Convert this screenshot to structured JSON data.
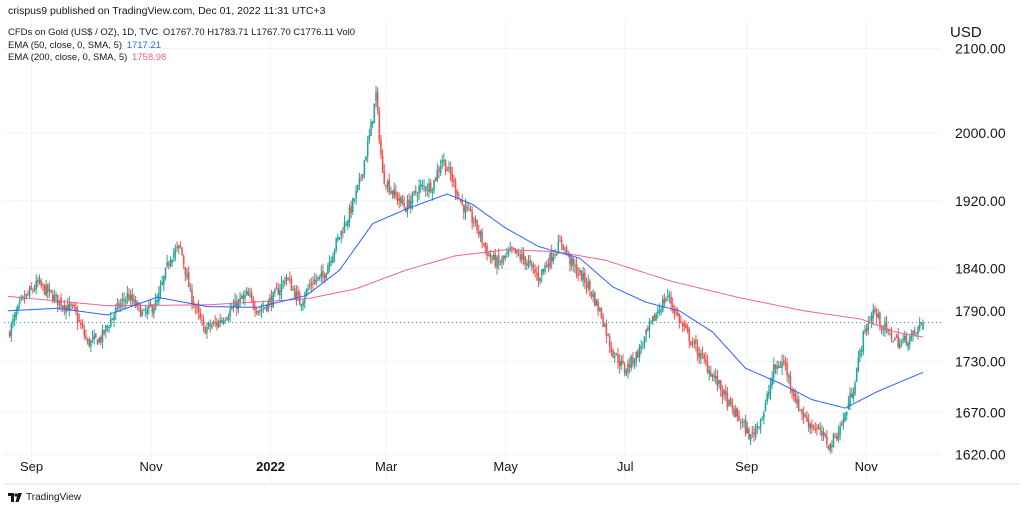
{
  "publisher_line": "crispus9 published on TradingView.com, Dec 01, 2022 11:31 UTC+3",
  "legend": {
    "symbol": "CFDs on Gold (US$ / OZ), 1D, TVC",
    "ohlc": "O1767.70 H1783.71 L1767.70 C1776.11 Vol0",
    "ema50_label": "EMA (50, close, 0, SMA, 5)",
    "ema50_value": "1717.21",
    "ema200_label": "EMA (200, close, 0, SMA, 5)",
    "ema200_value": "1758.98"
  },
  "currency": "USD",
  "brand": "TradingView",
  "colors": {
    "up": "#26a69a",
    "down": "#ef5350",
    "ema50": "#2962ff",
    "ema200": "#f06292",
    "last_price_line": "#26a69a"
  },
  "chart_data": {
    "type": "candlestick",
    "y_ticks": [
      "1620.00",
      "1670.00",
      "1730.00",
      "1790.00",
      "1840.00",
      "1920.00",
      "2000.00",
      "2100.00"
    ],
    "x_ticks": [
      "Sep",
      "Nov",
      "2022",
      "Mar",
      "May",
      "Jul",
      "Sep",
      "Nov"
    ],
    "ylim": [
      1590,
      2110
    ],
    "last_price": 1776.11,
    "close_path": [
      [
        0,
        1762
      ],
      [
        8,
        1800
      ],
      [
        18,
        1822
      ],
      [
        30,
        1802
      ],
      [
        40,
        1790
      ],
      [
        48,
        1752
      ],
      [
        56,
        1757
      ],
      [
        65,
        1790
      ],
      [
        72,
        1808
      ],
      [
        82,
        1785
      ],
      [
        90,
        1800
      ],
      [
        98,
        1855
      ],
      [
        104,
        1865
      ],
      [
        110,
        1810
      ],
      [
        118,
        1768
      ],
      [
        126,
        1775
      ],
      [
        135,
        1792
      ],
      [
        144,
        1808
      ],
      [
        152,
        1790
      ],
      [
        160,
        1805
      ],
      [
        168,
        1830
      ],
      [
        176,
        1800
      ],
      [
        184,
        1825
      ],
      [
        190,
        1830
      ],
      [
        198,
        1870
      ],
      [
        206,
        1905
      ],
      [
        212,
        1940
      ],
      [
        218,
        1995
      ],
      [
        222,
        2045
      ],
      [
        226,
        1950
      ],
      [
        232,
        1930
      ],
      [
        240,
        1912
      ],
      [
        248,
        1935
      ],
      [
        256,
        1938
      ],
      [
        262,
        1970
      ],
      [
        268,
        1945
      ],
      [
        274,
        1915
      ],
      [
        282,
        1892
      ],
      [
        290,
        1855
      ],
      [
        296,
        1845
      ],
      [
        304,
        1860
      ],
      [
        312,
        1850
      ],
      [
        320,
        1830
      ],
      [
        328,
        1855
      ],
      [
        334,
        1872
      ],
      [
        340,
        1845
      ],
      [
        350,
        1820
      ],
      [
        358,
        1785
      ],
      [
        364,
        1745
      ],
      [
        372,
        1720
      ],
      [
        380,
        1740
      ],
      [
        386,
        1765
      ],
      [
        392,
        1790
      ],
      [
        398,
        1808
      ],
      [
        406,
        1775
      ],
      [
        414,
        1748
      ],
      [
        420,
        1730
      ],
      [
        428,
        1705
      ],
      [
        436,
        1675
      ],
      [
        442,
        1660
      ],
      [
        448,
        1640
      ],
      [
        456,
        1670
      ],
      [
        462,
        1720
      ],
      [
        468,
        1730
      ],
      [
        476,
        1680
      ],
      [
        482,
        1660
      ],
      [
        488,
        1650
      ],
      [
        496,
        1630
      ],
      [
        504,
        1660
      ],
      [
        510,
        1700
      ],
      [
        516,
        1760
      ],
      [
        522,
        1790
      ],
      [
        530,
        1765
      ],
      [
        538,
        1752
      ],
      [
        546,
        1760
      ],
      [
        552,
        1776.11
      ]
    ],
    "ema50_path": [
      [
        0,
        1790
      ],
      [
        30,
        1793
      ],
      [
        60,
        1785
      ],
      [
        90,
        1806
      ],
      [
        120,
        1795
      ],
      [
        150,
        1794
      ],
      [
        180,
        1808
      ],
      [
        200,
        1838
      ],
      [
        220,
        1893
      ],
      [
        240,
        1910
      ],
      [
        265,
        1928
      ],
      [
        280,
        1916
      ],
      [
        300,
        1888
      ],
      [
        320,
        1866
      ],
      [
        345,
        1852
      ],
      [
        365,
        1818
      ],
      [
        385,
        1800
      ],
      [
        405,
        1790
      ],
      [
        425,
        1765
      ],
      [
        445,
        1722
      ],
      [
        465,
        1705
      ],
      [
        485,
        1685
      ],
      [
        505,
        1675
      ],
      [
        525,
        1695
      ],
      [
        552,
        1717.21
      ]
    ],
    "ema200_path": [
      [
        0,
        1807
      ],
      [
        60,
        1796
      ],
      [
        120,
        1797
      ],
      [
        180,
        1804
      ],
      [
        210,
        1816
      ],
      [
        240,
        1838
      ],
      [
        270,
        1855
      ],
      [
        300,
        1862
      ],
      [
        330,
        1860
      ],
      [
        360,
        1850
      ],
      [
        400,
        1825
      ],
      [
        440,
        1806
      ],
      [
        480,
        1790
      ],
      [
        515,
        1780
      ],
      [
        535,
        1765
      ],
      [
        552,
        1758.98
      ]
    ]
  }
}
